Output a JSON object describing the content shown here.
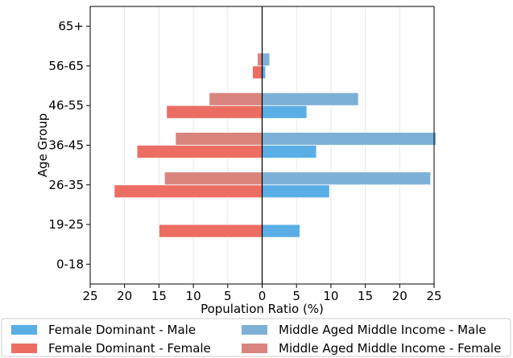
{
  "chart_data": {
    "type": "bar",
    "orientation": "horizontal-population-pyramid",
    "categories": [
      "0-18",
      "19-25",
      "26-35",
      "36-45",
      "46-55",
      "56-65",
      "65+"
    ],
    "xlabel": "Population Ratio (%)",
    "ylabel": "Age Group",
    "xlim": [
      -25,
      25
    ],
    "xticks": [
      -25,
      -20,
      -15,
      -10,
      -5,
      0,
      5,
      10,
      15,
      20,
      25
    ],
    "xtick_labels": [
      "25",
      "20",
      "15",
      "10",
      "5",
      "0",
      "5",
      "10",
      "15",
      "20",
      "25"
    ],
    "grid": "vertical",
    "legend_position": "bottom",
    "series": [
      {
        "name": "Female Dominant - Male",
        "color": "#5aaee6",
        "values": [
          0,
          5.5,
          9.8,
          7.9,
          6.5,
          0.5,
          0
        ]
      },
      {
        "name": "Female Dominant - Female",
        "color": "#ec6e63",
        "values": [
          0,
          -15,
          -21.5,
          -18.2,
          -13.9,
          -1.4,
          0
        ]
      },
      {
        "name": "Middle Aged Middle Income - Male",
        "color": "#7cb0d6",
        "values": [
          0,
          0,
          24.5,
          25.3,
          14,
          1.1,
          0
        ]
      },
      {
        "name": "Middle Aged Middle Income - Female",
        "color": "#d9857d",
        "values": [
          0,
          0,
          -14.2,
          -12.6,
          -7.7,
          -0.7,
          0
        ]
      }
    ]
  }
}
